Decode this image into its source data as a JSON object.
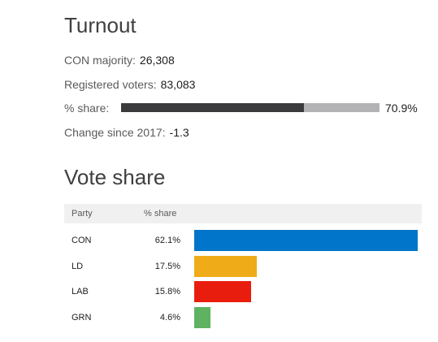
{
  "turnout": {
    "heading": "Turnout",
    "majority_label": "CON majority:",
    "majority_value": "26,308",
    "registered_label": "Registered voters:",
    "registered_value": "83,083",
    "share_label": "% share:",
    "share_value": "70.9%",
    "share_fraction": 0.709,
    "change_label": "Change since 2017:",
    "change_value": "-1.3"
  },
  "vote_share": {
    "heading": "Vote share",
    "col_party": "Party",
    "col_share": "% share",
    "rows": [
      {
        "party": "CON",
        "share": "62.1%",
        "value": 62.1,
        "color": "#0075c9"
      },
      {
        "party": "LD",
        "share": "17.5%",
        "value": 17.5,
        "color": "#efac18"
      },
      {
        "party": "LAB",
        "share": "15.8%",
        "value": 15.8,
        "color": "#e91d0e"
      },
      {
        "party": "GRN",
        "share": "4.6%",
        "value": 4.6,
        "color": "#5fb25f"
      }
    ]
  }
}
